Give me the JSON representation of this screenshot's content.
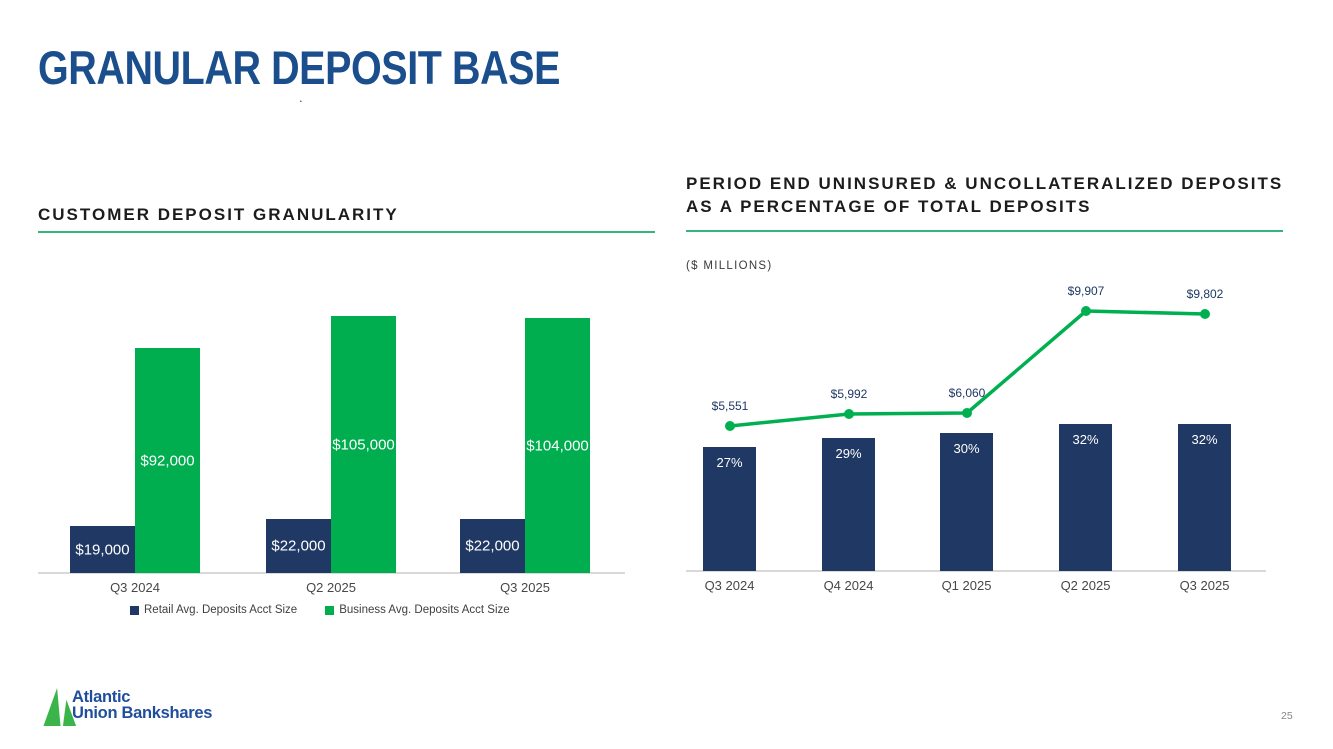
{
  "slide": {
    "title": "GRANULAR DEPOSIT BASE",
    "title_dot": ".",
    "page_number": "25"
  },
  "panels": {
    "left": {
      "title": "CUSTOMER DEPOSIT GRANULARITY"
    },
    "right": {
      "title_line1": "PERIOD END UNINSURED & UNCOLLATERALIZED DEPOSITS",
      "title_line2": "AS A PERCENTAGE OF TOTAL DEPOSITS",
      "units": "($ MILLIONS)"
    }
  },
  "footer": {
    "brand_line1": "Atlantic",
    "brand_line2": "Union Bankshares"
  },
  "colors": {
    "title_blue": "#1A4E8C",
    "navy": "#1F3864",
    "green": "#00AD4F",
    "line_green": "#00B050",
    "underline_green": "#35B57C",
    "axis_gray": "#D9D9D9",
    "tick_gray": "#474747",
    "logo_green": "#3BB54A",
    "logo_blue": "#1F4E9C",
    "pagenum_gray": "#868686"
  },
  "chart_data": [
    {
      "type": "bar",
      "title": "CUSTOMER DEPOSIT GRANULARITY",
      "categories": [
        "Q3 2024",
        "Q2 2025",
        "Q3 2025"
      ],
      "series": [
        {
          "name": "Retail Avg. Deposits Acct Size",
          "values": [
            19000,
            22000,
            22000
          ],
          "labels": [
            "$19,000",
            "$22,000",
            "$22,000"
          ],
          "color": "#1F3864"
        },
        {
          "name": "Business Avg. Deposits Acct Size",
          "values": [
            92000,
            105000,
            104000
          ],
          "labels": [
            "$92,000",
            "$105,000",
            "$104,000"
          ],
          "color": "#00AD4F"
        }
      ],
      "ylim": [
        0,
        112000
      ],
      "grid": false,
      "y_axis_visible": false,
      "legend_position": "bottom",
      "data_labels": "inside-center-white"
    },
    {
      "type": "bar+line",
      "title": "PERIOD END UNINSURED & UNCOLLATERALIZED DEPOSITS AS A PERCENTAGE OF TOTAL DEPOSITS",
      "subtitle": "($ MILLIONS)",
      "categories": [
        "Q3 2024",
        "Q4 2024",
        "Q1 2025",
        "Q2 2025",
        "Q3 2025"
      ],
      "series": [
        {
          "name": "Percentage of total deposits",
          "render": "bar",
          "unit": "%",
          "values": [
            27,
            29,
            30,
            32,
            32
          ],
          "labels": [
            "27%",
            "29%",
            "30%",
            "32%",
            "32%"
          ],
          "color": "#1F3864"
        },
        {
          "name": "Period end uninsured & uncollateralized deposits",
          "render": "line",
          "unit": "$ millions",
          "values": [
            5551,
            5992,
            6060,
            9907,
            9802
          ],
          "labels": [
            "$5,551",
            "$5,992",
            "$6,060",
            "$9,907",
            "$9,802"
          ],
          "color": "#00B050"
        }
      ],
      "grid": false,
      "y_axis_visible": false,
      "legend_position": "none",
      "data_labels": "bars inside-top-white, line above-navy"
    }
  ]
}
